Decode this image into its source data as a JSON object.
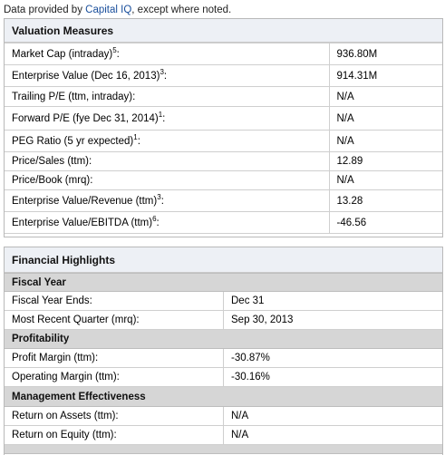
{
  "credit": {
    "prefix": "Data provided by ",
    "link": "Capital IQ",
    "suffix": ", except where noted."
  },
  "valuation": {
    "title": "Valuation Measures",
    "rows": [
      {
        "label": "Market Cap (intraday)",
        "note": "5",
        "tail": ":",
        "value": "936.80M"
      },
      {
        "label": "Enterprise Value (Dec 16, 2013)",
        "note": "3",
        "tail": ":",
        "value": "914.31M"
      },
      {
        "label": "Trailing P/E (ttm, intraday):",
        "note": "",
        "tail": "",
        "value": "N/A"
      },
      {
        "label": "Forward P/E (fye Dec 31, 2014)",
        "note": "1",
        "tail": ":",
        "value": "N/A"
      },
      {
        "label": "PEG Ratio (5 yr expected)",
        "note": "1",
        "tail": ":",
        "value": "N/A"
      },
      {
        "label": "Price/Sales (ttm):",
        "note": "",
        "tail": "",
        "value": "12.89"
      },
      {
        "label": "Price/Book (mrq):",
        "note": "",
        "tail": "",
        "value": "N/A"
      },
      {
        "label": "Enterprise Value/Revenue (ttm)",
        "note": "3",
        "tail": ":",
        "value": "13.28"
      },
      {
        "label": "Enterprise Value/EBITDA (ttm)",
        "note": "6",
        "tail": ":",
        "value": "-46.56"
      }
    ]
  },
  "financial": {
    "title": "Financial Highlights",
    "sections": [
      {
        "name": "Fiscal Year",
        "rows": [
          {
            "label": "Fiscal Year Ends:",
            "value": "Dec 31"
          },
          {
            "label": "Most Recent Quarter (mrq):",
            "value": "Sep 30, 2013"
          }
        ]
      },
      {
        "name": "Profitability",
        "rows": [
          {
            "label": "Profit Margin (ttm):",
            "value": "-30.87%"
          },
          {
            "label": "Operating Margin (ttm):",
            "value": "-30.16%"
          }
        ]
      },
      {
        "name": "Management Effectiveness",
        "rows": [
          {
            "label": "Return on Assets (ttm):",
            "value": "N/A"
          },
          {
            "label": "Return on Equity (ttm):",
            "value": "N/A"
          }
        ]
      }
    ]
  }
}
